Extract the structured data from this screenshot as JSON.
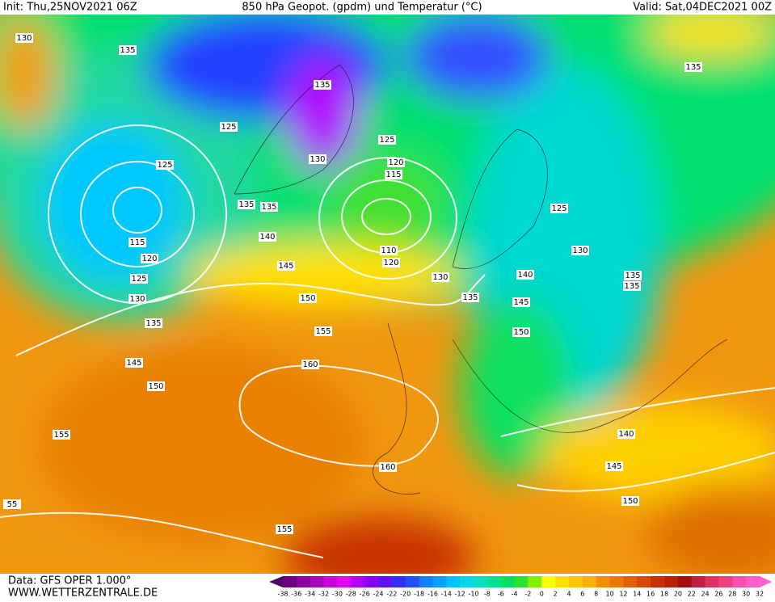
{
  "header": {
    "init": "Init: Thu,25NOV2021 06Z",
    "title": "850 hPa Geopot. (gpdm) und Temperatur (°C)",
    "valid": "Valid: Sat,04DEC2021 00Z"
  },
  "footer": {
    "data_source": "Data: GFS OPER 1.000°",
    "website": "WWW.WETTERZENTRALE.DE"
  },
  "contour_labels": [
    130,
    135,
    125,
    135,
    130,
    125,
    120,
    115,
    125,
    135,
    135,
    140,
    145,
    115,
    120,
    125,
    130,
    135,
    150,
    155,
    160,
    145,
    150,
    155,
    160,
    155,
    55,
    150,
    145,
    140,
    150,
    145,
    140,
    135,
    130,
    120,
    110,
    125,
    130,
    135,
    135,
    135
  ],
  "colorbar": {
    "ticks": [
      -38,
      -36,
      -34,
      -32,
      -30,
      -28,
      -26,
      -24,
      -22,
      -20,
      -18,
      -16,
      -14,
      -12,
      -10,
      -8,
      -6,
      -4,
      -2,
      0,
      2,
      4,
      6,
      8,
      10,
      12,
      14,
      16,
      18,
      20,
      22,
      24,
      26,
      28,
      30,
      32
    ],
    "colors": [
      "#4b0060",
      "#6a0080",
      "#8a00a0",
      "#aa00c0",
      "#cc00dd",
      "#e600f0",
      "#b000ff",
      "#8a00ff",
      "#6010ff",
      "#3030ff",
      "#2050ff",
      "#1080ff",
      "#00a0ff",
      "#00c0ff",
      "#00d8e8",
      "#00e0c0",
      "#00e090",
      "#00e060",
      "#30e030",
      "#80f000",
      "#ffff00",
      "#ffe000",
      "#ffc800",
      "#ffb000",
      "#f09000",
      "#e87800",
      "#e06000",
      "#d84800",
      "#c83000",
      "#b82000",
      "#a01010",
      "#c02040",
      "#e03060",
      "#f04080",
      "#ff50b0",
      "#ff60d0"
    ]
  }
}
